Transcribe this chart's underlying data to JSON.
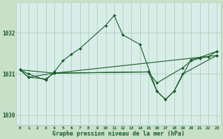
{
  "background_color": "#c8dfc8",
  "plot_bg_color": "#d8ede8",
  "grid_color": "#a8c8b8",
  "line_color": "#1a5c28",
  "title": "Graphe pression niveau de la mer (hPa)",
  "hours": [
    0,
    1,
    2,
    3,
    4,
    5,
    6,
    7,
    8,
    9,
    10,
    11,
    12,
    13,
    14,
    15,
    16,
    17,
    18,
    19,
    20,
    21,
    22,
    23
  ],
  "ylim": [
    1029.75,
    1032.75
  ],
  "yticks": [
    1030,
    1031,
    1032
  ],
  "line1_x": [
    0,
    1,
    3,
    4,
    5,
    6,
    7,
    10,
    11,
    12,
    14,
    16,
    17,
    18,
    20,
    21,
    23
  ],
  "line1_y": [
    1031.1,
    1031.0,
    1030.85,
    1031.05,
    1031.32,
    1031.48,
    1031.62,
    1032.18,
    1032.42,
    1031.95,
    1031.72,
    1030.58,
    1030.38,
    1030.58,
    1031.35,
    1031.4,
    1031.55
  ],
  "line2_x": [
    0,
    1,
    3,
    4,
    23
  ],
  "line2_y": [
    1031.1,
    1030.92,
    1030.88,
    1031.02,
    1031.45
  ],
  "line3_x": [
    0,
    1,
    4,
    15,
    16,
    19,
    20,
    21,
    22,
    23
  ],
  "line3_y": [
    1031.1,
    1030.92,
    1031.02,
    1031.05,
    1030.78,
    1031.15,
    1031.32,
    1031.38,
    1031.42,
    1031.55
  ],
  "line4_x": [
    0,
    4,
    15,
    16,
    17,
    18,
    19,
    23
  ],
  "line4_y": [
    1031.1,
    1031.02,
    1031.05,
    1030.58,
    1030.38,
    1030.58,
    1031.0,
    1031.45
  ]
}
